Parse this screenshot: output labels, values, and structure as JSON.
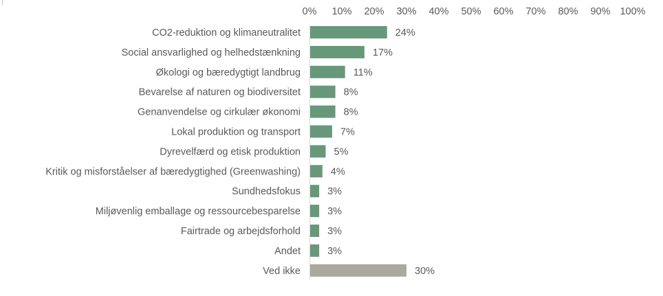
{
  "chart_data": {
    "type": "bar",
    "orientation": "horizontal",
    "title": "",
    "xlabel": "",
    "ylabel": "",
    "xlim": [
      0,
      100
    ],
    "x_ticks": [
      "0%",
      "10%",
      "20%",
      "30%",
      "40%",
      "50%",
      "60%",
      "70%",
      "80%",
      "90%",
      "100%"
    ],
    "x_axis_position": "top",
    "grid": false,
    "legend": "none",
    "categories": [
      "CO2-reduktion og klimaneutralitet",
      "Social ansvarlighed og helhedstænkning",
      "Økologi og bæredygtigt landbrug",
      "Bevarelse af naturen og biodiversitet",
      "Genanvendelse og cirkulær økonomi",
      "Lokal produktion og transport",
      "Dyrevelfærd og etisk produktion",
      "Kritik og misforståelser af bæredygtighed (Greenwashing)",
      "Sundhedsfokus",
      "Miljøvenlig emballage og ressourcebesparelse",
      "Fairtrade og arbejdsforhold",
      "Andet",
      "Ved ikke"
    ],
    "values": [
      24,
      17,
      11,
      8,
      8,
      7,
      5,
      4,
      3,
      3,
      3,
      3,
      30
    ],
    "data_labels": [
      "24%",
      "17%",
      "11%",
      "8%",
      "8%",
      "7%",
      "5%",
      "4%",
      "3%",
      "3%",
      "3%",
      "3%",
      "30%"
    ],
    "colors": [
      "#67987a",
      "#67987a",
      "#67987a",
      "#67987a",
      "#67987a",
      "#67987a",
      "#67987a",
      "#67987a",
      "#67987a",
      "#67987a",
      "#67987a",
      "#67987a",
      "#a9a99e"
    ]
  }
}
